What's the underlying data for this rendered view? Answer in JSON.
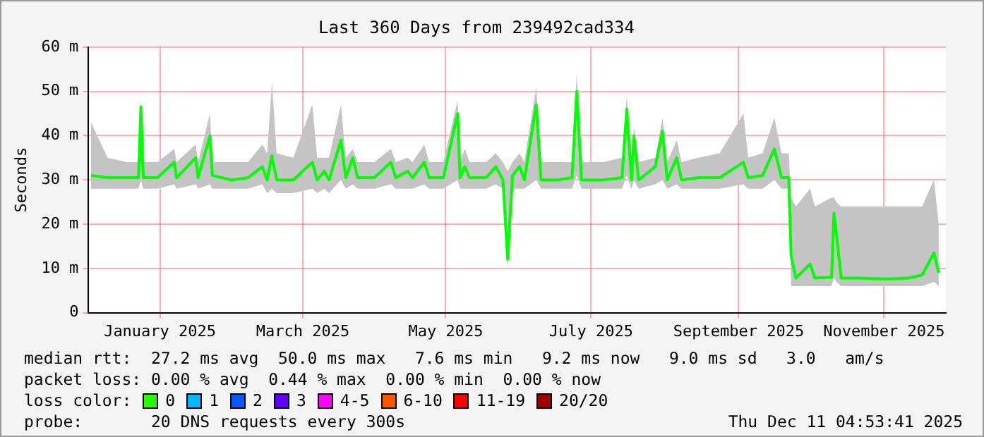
{
  "chart_data": {
    "type": "line",
    "title": "Last 360 Days from 239492cad334",
    "ylabel": "Seconds",
    "x": [
      "2024-12-17",
      "2024-12-24",
      "2025-01-01",
      "2025-01-06",
      "2025-01-07",
      "2025-01-08",
      "2025-01-14",
      "2025-01-21",
      "2025-01-22",
      "2025-01-30",
      "2025-01-31",
      "2025-02-05",
      "2025-02-06",
      "2025-02-14",
      "2025-02-21",
      "2025-02-27",
      "2025-03-01",
      "2025-03-03",
      "2025-03-05",
      "2025-03-12",
      "2025-03-20",
      "2025-03-22",
      "2025-03-25",
      "2025-03-27",
      "2025-04-01",
      "2025-04-03",
      "2025-04-06",
      "2025-04-08",
      "2025-04-15",
      "2025-04-22",
      "2025-04-24",
      "2025-04-29",
      "2025-05-01",
      "2025-05-06",
      "2025-05-08",
      "2025-05-14",
      "2025-05-20",
      "2025-05-21",
      "2025-05-23",
      "2025-05-25",
      "2025-06-01",
      "2025-06-05",
      "2025-06-08",
      "2025-06-10",
      "2025-06-12",
      "2025-06-15",
      "2025-06-17",
      "2025-06-22",
      "2025-06-24",
      "2025-07-01",
      "2025-07-07",
      "2025-07-09",
      "2025-07-11",
      "2025-07-20",
      "2025-07-28",
      "2025-07-30",
      "2025-08-01",
      "2025-08-02",
      "2025-08-04",
      "2025-08-11",
      "2025-08-14",
      "2025-08-16",
      "2025-08-20",
      "2025-08-22",
      "2025-08-29",
      "2025-09-07",
      "2025-09-17",
      "2025-09-19",
      "2025-09-25",
      "2025-09-30",
      "2025-10-03",
      "2025-10-06",
      "2025-10-07",
      "2025-10-09",
      "2025-10-15",
      "2025-10-17",
      "2025-10-24",
      "2025-10-25",
      "2025-10-26",
      "2025-10-28",
      "2025-11-05",
      "2025-11-15",
      "2025-11-25",
      "2025-12-01",
      "2025-12-06",
      "2025-12-08"
    ],
    "series": [
      {
        "color": "#00ff00",
        "values": [
          31,
          30.5,
          30.5,
          30.5,
          46.5,
          30.5,
          30.5,
          34,
          30.5,
          35,
          30.5,
          40,
          31,
          30,
          30.5,
          33,
          30,
          35.5,
          30,
          30,
          34,
          30,
          32,
          30,
          39,
          30.5,
          35,
          30.5,
          30.5,
          34,
          30.5,
          32,
          30.5,
          34,
          30.5,
          30.5,
          45,
          30.5,
          33,
          30.5,
          30.5,
          33,
          30,
          12,
          31,
          33,
          30,
          47,
          30,
          30,
          30.5,
          50,
          30,
          30,
          30.5,
          46,
          30,
          40,
          30,
          33,
          41,
          30,
          35,
          30,
          30.5,
          30.5,
          34,
          30.5,
          31,
          37,
          30.5,
          30.5,
          13,
          7.8,
          11,
          7.8,
          8,
          22.5,
          18,
          7.8,
          7.8,
          7.6,
          7.8,
          8.5,
          13.5,
          9
        ],
        "lower": [
          28,
          28,
          28,
          28,
          30,
          28,
          28,
          29,
          28,
          29,
          28,
          29,
          28,
          28,
          28,
          29,
          27,
          28,
          27,
          27,
          28,
          27,
          28,
          27,
          30,
          28,
          29,
          28,
          28,
          29,
          28,
          28,
          28,
          29,
          28,
          28,
          30,
          28,
          28,
          28,
          28,
          29,
          28,
          10,
          28,
          28,
          28,
          30,
          28,
          28,
          28,
          31,
          28,
          28,
          28,
          31,
          28,
          30,
          28,
          29,
          30,
          28,
          29,
          28,
          28,
          28,
          29,
          28,
          28,
          30,
          28,
          28,
          6,
          6,
          6,
          6,
          6,
          8,
          7,
          6,
          6,
          6,
          6,
          6,
          7,
          6
        ],
        "upper": [
          43,
          35,
          34,
          34,
          47,
          34,
          34,
          37,
          34,
          38,
          34,
          45,
          34,
          34,
          34,
          38,
          36,
          52,
          36,
          35,
          47,
          35,
          35,
          35,
          47,
          35,
          37,
          34,
          34,
          37,
          34,
          35,
          34,
          38,
          34,
          34,
          48,
          34,
          37,
          34,
          34,
          36,
          34,
          32,
          34,
          36,
          34,
          51,
          34,
          34,
          34,
          54,
          34,
          34,
          35,
          49,
          34,
          42,
          34,
          35,
          44,
          34,
          39,
          34,
          35,
          36,
          45,
          35,
          36,
          44,
          36,
          36,
          26,
          24,
          28,
          24,
          26,
          26,
          25,
          24,
          24,
          24,
          24,
          24,
          30,
          20
        ]
      }
    ],
    "xlim": [
      "2024-12-16",
      "2025-12-11"
    ],
    "xticks": [
      {
        "value": "2025-01-15",
        "label": "January 2025"
      },
      {
        "value": "2025-03-16",
        "label": "March 2025"
      },
      {
        "value": "2025-05-15",
        "label": "May 2025"
      },
      {
        "value": "2025-07-15",
        "label": "July 2025"
      },
      {
        "value": "2025-09-15",
        "label": "September 2025"
      },
      {
        "value": "2025-11-15",
        "label": "November 2025"
      }
    ],
    "ylim": [
      0,
      60
    ],
    "yticks": [
      0,
      {
        "value": 10,
        "label": "10 m"
      },
      {
        "value": 20,
        "label": "20 m"
      },
      {
        "value": 30,
        "label": "30 m"
      },
      {
        "value": 40,
        "label": "40 m"
      },
      {
        "value": 50,
        "label": "50 m"
      },
      {
        "value": 60,
        "label": "60 m"
      }
    ],
    "grid": true,
    "legend": false,
    "marker": "none",
    "line_style": "solid",
    "annotations": [
      "median rtt:  27.2 ms avg  50.0 ms max   7.6 ms min   9.2 ms now   9.0 ms sd   3.0   am/s",
      "packet loss: 0.00 % avg  0.44 % max  0.00 % min  0.00 % now",
      "loss color:",
      "0",
      "1",
      "2",
      "3",
      "4-5",
      "6-10",
      "11-19",
      "20/20",
      "probe:       20 DNS requests every 300s",
      "Thu Dec 11 04:53:41 2025"
    ]
  }
}
